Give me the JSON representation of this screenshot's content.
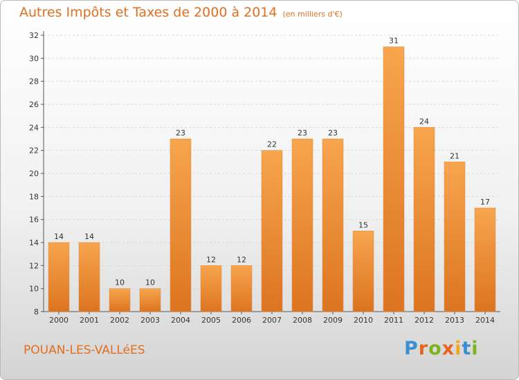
{
  "title": "Autres Impôts et Taxes de 2000 à 2014",
  "title_unit": "(en milliers d'€)",
  "commune": "POUAN-LES-VALLéES",
  "logo": {
    "letters": [
      "P",
      "r",
      "o",
      "x",
      "i",
      "t",
      "i"
    ],
    "colors": [
      "#3a8fd1",
      "#e8641e",
      "#7ab51d",
      "#e8641e",
      "#f0a81e",
      "#3a8fd1",
      "#7ab51d"
    ]
  },
  "colors": {
    "accent": "#e06f1f",
    "bar_top": "#f7a54e",
    "bar_bottom": "#dc7420"
  },
  "chart_data": {
    "type": "bar",
    "categories": [
      "2000",
      "2001",
      "2002",
      "2003",
      "2004",
      "2005",
      "2006",
      "2007",
      "2008",
      "2009",
      "2010",
      "2011",
      "2012",
      "2013",
      "2014"
    ],
    "values": [
      14,
      14,
      10,
      10,
      23,
      12,
      12,
      22,
      23,
      23,
      15,
      31,
      24,
      21,
      17
    ],
    "ylim": [
      8,
      32
    ],
    "yticks": [
      8,
      10,
      12,
      14,
      16,
      18,
      20,
      22,
      24,
      26,
      28,
      30,
      32
    ],
    "grid": true
  }
}
